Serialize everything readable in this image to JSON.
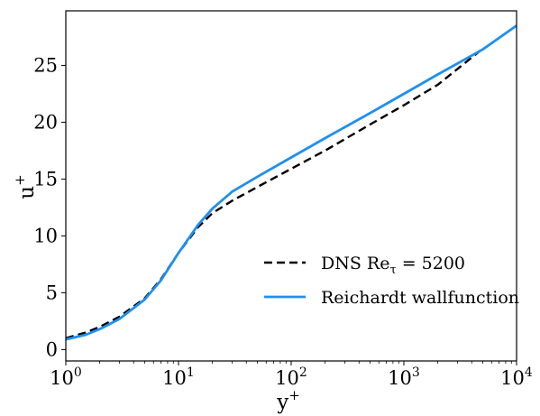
{
  "chart_data": {
    "type": "line",
    "xscale": "log",
    "xlim": [
      1,
      10000
    ],
    "ylim": [
      -1,
      29.8
    ],
    "xlabel": "y+",
    "ylabel": "u+",
    "grid": false,
    "legend_placement": "center-right",
    "x_ticks": [
      {
        "value": 1,
        "base": "10",
        "exp": "0"
      },
      {
        "value": 10,
        "base": "10",
        "exp": "1"
      },
      {
        "value": 100,
        "base": "10",
        "exp": "2"
      },
      {
        "value": 1000,
        "base": "10",
        "exp": "3"
      },
      {
        "value": 10000,
        "base": "10",
        "exp": "4"
      }
    ],
    "y_ticks": [
      0,
      5,
      10,
      15,
      20,
      25
    ],
    "series": [
      {
        "name": "DNS Re_τ = 5200",
        "label_main": "DNS Re",
        "label_sub": "τ",
        "label_rest": " = 5200",
        "color": "#000000",
        "dash": "9,5",
        "x": [
          1,
          1.5,
          2,
          3,
          5,
          7,
          10,
          15,
          20,
          30,
          50,
          100,
          200,
          500,
          1000,
          2000,
          5200
        ],
        "y": [
          1.0,
          1.5,
          2.0,
          2.9,
          4.5,
          6.2,
          8.5,
          10.8,
          12.0,
          13.1,
          14.3,
          15.9,
          17.5,
          19.8,
          21.5,
          23.3,
          26.6
        ]
      },
      {
        "name": "Reichardt wallfunction",
        "color": "#1f8ff0",
        "dash": "",
        "x": [
          1,
          1.5,
          2,
          3,
          5,
          7,
          10,
          15,
          20,
          30,
          50,
          100,
          200,
          500,
          1000,
          2000,
          5000,
          10000
        ],
        "y": [
          0.9,
          1.3,
          1.8,
          2.7,
          4.4,
          6.1,
          8.5,
          11.0,
          12.4,
          13.9,
          15.2,
          16.9,
          18.6,
          20.8,
          22.5,
          24.2,
          26.4,
          28.5
        ]
      }
    ]
  }
}
